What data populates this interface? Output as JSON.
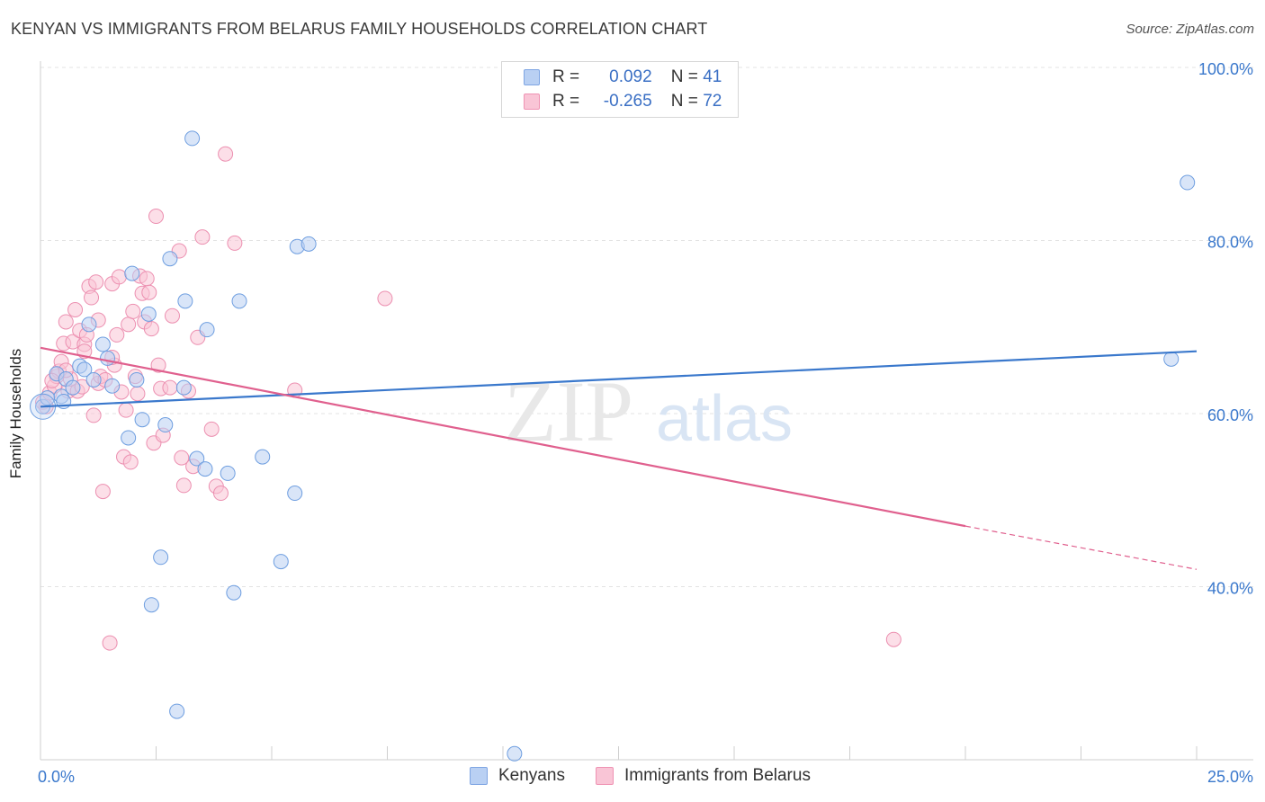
{
  "title": "KENYAN VS IMMIGRANTS FROM BELARUS FAMILY HOUSEHOLDS CORRELATION CHART",
  "source": "Source: ZipAtlas.com",
  "watermark": {
    "zip": "ZIP",
    "atlas": "atlas"
  },
  "legend": {
    "r_label": "R =",
    "n_label": "N =",
    "series1": {
      "r": "0.092",
      "n": "41"
    },
    "series2": {
      "r": "-0.265",
      "n": "72"
    }
  },
  "bottom_legend": {
    "series1": "Kenyans",
    "series2": "Immigrants from Belarus"
  },
  "chart_data": {
    "type": "scatter",
    "title": "KENYAN VS IMMIGRANTS FROM BELARUS FAMILY HOUSEHOLDS CORRELATION CHART",
    "xlabel": "",
    "ylabel": "Family Households",
    "xlim": [
      0,
      25
    ],
    "ylim": [
      20,
      100
    ],
    "x_tick_labels": [
      "0.0%",
      "25.0%"
    ],
    "y_ticks": [
      40,
      60,
      80,
      100
    ],
    "y_tick_labels": [
      "40.0%",
      "60.0%",
      "80.0%",
      "100.0%"
    ],
    "grid": true,
    "colors": {
      "kenyans": "#3a78cc",
      "kenyans_fill": "#b9d0f3",
      "belarus": "#e0608e",
      "belarus_fill": "#f9c5d6"
    },
    "series": [
      {
        "name": "Kenyans",
        "r": 0.092,
        "n": 41,
        "trend": {
          "x0": 0,
          "y0": 60.8,
          "x1": 25,
          "y1": 67.2
        },
        "points": [
          [
            0.05,
            60.8
          ],
          [
            0.15,
            61.8
          ],
          [
            0.35,
            64.6
          ],
          [
            0.45,
            62.0
          ],
          [
            0.5,
            61.4
          ],
          [
            0.55,
            64.0
          ],
          [
            0.7,
            63.0
          ],
          [
            0.85,
            65.5
          ],
          [
            0.95,
            65.1
          ],
          [
            1.05,
            70.3
          ],
          [
            1.15,
            63.9
          ],
          [
            1.35,
            68.0
          ],
          [
            1.45,
            66.4
          ],
          [
            1.55,
            63.2
          ],
          [
            1.9,
            57.2
          ],
          [
            1.98,
            76.2
          ],
          [
            2.08,
            63.9
          ],
          [
            2.2,
            59.3
          ],
          [
            2.34,
            71.5
          ],
          [
            2.4,
            37.9
          ],
          [
            2.6,
            43.4
          ],
          [
            2.7,
            58.7
          ],
          [
            2.8,
            77.9
          ],
          [
            2.95,
            25.6
          ],
          [
            3.1,
            63.0
          ],
          [
            3.13,
            73.0
          ],
          [
            3.28,
            91.8
          ],
          [
            3.38,
            54.8
          ],
          [
            3.56,
            53.6
          ],
          [
            3.6,
            69.7
          ],
          [
            4.05,
            53.1
          ],
          [
            4.18,
            39.3
          ],
          [
            4.3,
            73.0
          ],
          [
            4.8,
            55.0
          ],
          [
            5.2,
            42.9
          ],
          [
            5.5,
            50.8
          ],
          [
            5.55,
            79.3
          ],
          [
            5.8,
            79.6
          ],
          [
            10.25,
            20.7
          ],
          [
            24.8,
            86.7
          ],
          [
            24.45,
            66.3
          ]
        ]
      },
      {
        "name": "Immigrants from Belarus",
        "r": -0.265,
        "n": 72,
        "trend": {
          "x0": 0,
          "y0": 67.6,
          "x1": 20,
          "y1": 47.0,
          "x_dashed_end": 25,
          "y_dashed_end": 42.0
        },
        "points": [
          [
            0.05,
            61.3
          ],
          [
            0.12,
            60.8
          ],
          [
            0.2,
            62.4
          ],
          [
            0.3,
            63.2
          ],
          [
            0.35,
            64.3
          ],
          [
            0.4,
            64.9
          ],
          [
            0.45,
            66.0
          ],
          [
            0.5,
            68.1
          ],
          [
            0.55,
            70.6
          ],
          [
            0.6,
            62.6
          ],
          [
            0.65,
            64.0
          ],
          [
            0.7,
            68.3
          ],
          [
            0.75,
            72.0
          ],
          [
            0.8,
            62.6
          ],
          [
            0.85,
            69.6
          ],
          [
            0.9,
            63.1
          ],
          [
            0.95,
            68.0
          ],
          [
            1.0,
            69.1
          ],
          [
            1.05,
            74.7
          ],
          [
            1.1,
            73.4
          ],
          [
            1.15,
            59.8
          ],
          [
            1.2,
            75.2
          ],
          [
            1.25,
            63.5
          ],
          [
            1.3,
            64.3
          ],
          [
            1.35,
            51.0
          ],
          [
            1.4,
            63.9
          ],
          [
            1.5,
            33.5
          ],
          [
            1.55,
            75.0
          ],
          [
            1.6,
            65.6
          ],
          [
            1.65,
            69.1
          ],
          [
            1.7,
            75.8
          ],
          [
            1.75,
            62.5
          ],
          [
            1.8,
            55.0
          ],
          [
            1.85,
            60.4
          ],
          [
            1.9,
            70.3
          ],
          [
            1.95,
            54.4
          ],
          [
            2.0,
            71.8
          ],
          [
            2.05,
            64.3
          ],
          [
            2.1,
            62.3
          ],
          [
            2.15,
            75.9
          ],
          [
            2.2,
            73.9
          ],
          [
            2.25,
            70.6
          ],
          [
            2.3,
            75.6
          ],
          [
            2.35,
            74.0
          ],
          [
            2.4,
            69.8
          ],
          [
            2.45,
            56.6
          ],
          [
            2.5,
            82.8
          ],
          [
            2.55,
            65.6
          ],
          [
            2.6,
            62.9
          ],
          [
            2.65,
            57.5
          ],
          [
            2.85,
            71.3
          ],
          [
            3.0,
            78.8
          ],
          [
            3.1,
            51.7
          ],
          [
            3.2,
            62.6
          ],
          [
            3.3,
            53.9
          ],
          [
            3.4,
            68.8
          ],
          [
            3.5,
            80.4
          ],
          [
            3.7,
            58.2
          ],
          [
            3.8,
            51.6
          ],
          [
            3.9,
            50.8
          ],
          [
            4.0,
            90.0
          ],
          [
            4.2,
            79.7
          ],
          [
            5.5,
            62.7
          ],
          [
            7.45,
            73.3
          ],
          [
            18.45,
            33.9
          ],
          [
            0.25,
            63.8
          ],
          [
            0.55,
            65.0
          ],
          [
            0.95,
            67.2
          ],
          [
            1.25,
            70.8
          ],
          [
            1.55,
            66.5
          ],
          [
            2.8,
            63.0
          ],
          [
            3.05,
            54.9
          ]
        ]
      }
    ]
  }
}
